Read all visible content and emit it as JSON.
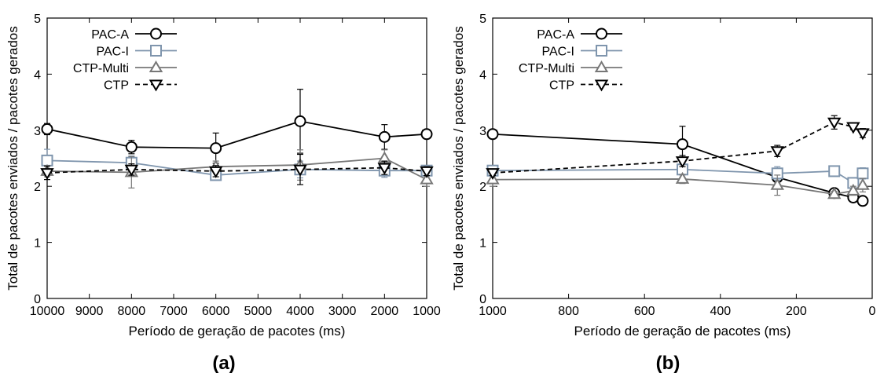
{
  "chart_data": [
    {
      "type": "line",
      "panel_label": "(a)",
      "xlabel": "Período de geração de pacotes (ms)",
      "ylabel": "Total de pacotes enviados / pacotes gerados",
      "xlim": [
        10000,
        1000
      ],
      "x_reversed": true,
      "ylim": [
        0,
        5
      ],
      "xticks": [
        10000,
        9000,
        8000,
        7000,
        6000,
        5000,
        4000,
        3000,
        2000,
        1000
      ],
      "yticks": [
        0,
        1,
        2,
        3,
        4,
        5
      ],
      "grid": false,
      "legend": "top-left",
      "series": [
        {
          "name": "PAC-A",
          "marker": "circle",
          "color": "#000000",
          "dash": "",
          "points": [
            {
              "x": 10000,
              "y": 3.02,
              "err": 0.1
            },
            {
              "x": 8000,
              "y": 2.7,
              "err": 0.12
            },
            {
              "x": 6000,
              "y": 2.68,
              "err": 0.27
            },
            {
              "x": 4000,
              "y": 3.16,
              "err": 0.57
            },
            {
              "x": 2000,
              "y": 2.88,
              "err": 0.22
            },
            {
              "x": 1000,
              "y": 2.93,
              "err": 0.05
            }
          ]
        },
        {
          "name": "PAC-I",
          "marker": "square",
          "color": "#7f95ad",
          "dash": "",
          "points": [
            {
              "x": 10000,
              "y": 2.46,
              "err": 0.2
            },
            {
              "x": 8000,
              "y": 2.42,
              "err": 0.12
            },
            {
              "x": 6000,
              "y": 2.2,
              "err": 0.07
            },
            {
              "x": 4000,
              "y": 2.3,
              "err": 0.15
            },
            {
              "x": 2000,
              "y": 2.28,
              "err": 0.12
            },
            {
              "x": 1000,
              "y": 2.28,
              "err": 0.08
            }
          ]
        },
        {
          "name": "CTP-Multi",
          "marker": "triangle-up",
          "color": "#777777",
          "dash": "",
          "points": [
            {
              "x": 10000,
              "y": 2.27,
              "err": 0.1
            },
            {
              "x": 8000,
              "y": 2.25,
              "err": 0.28
            },
            {
              "x": 6000,
              "y": 2.35,
              "err": 0.1
            },
            {
              "x": 4000,
              "y": 2.38,
              "err": 0.27
            },
            {
              "x": 2000,
              "y": 2.5,
              "err": 0.15
            },
            {
              "x": 1000,
              "y": 2.12,
              "err": 0.12
            }
          ]
        },
        {
          "name": "CTP",
          "marker": "triangle-down",
          "color": "#000000",
          "dash": "6,4",
          "points": [
            {
              "x": 10000,
              "y": 2.24,
              "err": 0.12
            },
            {
              "x": 8000,
              "y": 2.3,
              "err": 0.1
            },
            {
              "x": 6000,
              "y": 2.27,
              "err": 0.1
            },
            {
              "x": 4000,
              "y": 2.3,
              "err": 0.27
            },
            {
              "x": 2000,
              "y": 2.33,
              "err": 0.12
            },
            {
              "x": 1000,
              "y": 2.27,
              "err": 0.08
            }
          ]
        }
      ]
    },
    {
      "type": "line",
      "panel_label": "(b)",
      "xlabel": "Período de geração de pacotes (ms)",
      "ylabel": "Total de pacotes enviados / pacotes gerados",
      "xlim": [
        1000,
        0
      ],
      "x_reversed": true,
      "ylim": [
        0,
        5
      ],
      "xticks": [
        1000,
        800,
        600,
        400,
        200,
        0
      ],
      "yticks": [
        0,
        1,
        2,
        3,
        4,
        5
      ],
      "grid": false,
      "legend": "top-left",
      "series": [
        {
          "name": "PAC-A",
          "marker": "circle",
          "color": "#000000",
          "dash": "",
          "points": [
            {
              "x": 1000,
              "y": 2.93,
              "err": 0.05
            },
            {
              "x": 500,
              "y": 2.75,
              "err": 0.32
            },
            {
              "x": 250,
              "y": 2.16,
              "err": 0.08
            },
            {
              "x": 100,
              "y": 1.88,
              "err": 0.05
            },
            {
              "x": 50,
              "y": 1.8,
              "err": 0.05
            },
            {
              "x": 25,
              "y": 1.74,
              "err": 0.05
            }
          ]
        },
        {
          "name": "PAC-I",
          "marker": "square",
          "color": "#7f95ad",
          "dash": "",
          "points": [
            {
              "x": 1000,
              "y": 2.28,
              "err": 0.08
            },
            {
              "x": 500,
              "y": 2.3,
              "err": 0.1
            },
            {
              "x": 250,
              "y": 2.23,
              "err": 0.12
            },
            {
              "x": 100,
              "y": 2.27,
              "err": 0.08
            },
            {
              "x": 50,
              "y": 2.06,
              "err": 0.08
            },
            {
              "x": 25,
              "y": 2.23,
              "err": 0.1
            }
          ]
        },
        {
          "name": "CTP-Multi",
          "marker": "triangle-up",
          "color": "#777777",
          "dash": "",
          "points": [
            {
              "x": 1000,
              "y": 2.12,
              "err": 0.12
            },
            {
              "x": 500,
              "y": 2.13,
              "err": 0.08
            },
            {
              "x": 250,
              "y": 2.02,
              "err": 0.18
            },
            {
              "x": 100,
              "y": 1.86,
              "err": 0.05
            },
            {
              "x": 50,
              "y": 1.92,
              "err": 0.08
            },
            {
              "x": 25,
              "y": 2.02,
              "err": 0.12
            }
          ]
        },
        {
          "name": "CTP",
          "marker": "triangle-down",
          "color": "#000000",
          "dash": "6,4",
          "points": [
            {
              "x": 1000,
              "y": 2.24,
              "err": 0.05
            },
            {
              "x": 500,
              "y": 2.45,
              "err": 0.1
            },
            {
              "x": 250,
              "y": 2.63,
              "err": 0.1
            },
            {
              "x": 100,
              "y": 3.14,
              "err": 0.12
            },
            {
              "x": 50,
              "y": 3.06,
              "err": 0.05
            },
            {
              "x": 25,
              "y": 2.95,
              "err": 0.08
            }
          ]
        }
      ]
    }
  ]
}
